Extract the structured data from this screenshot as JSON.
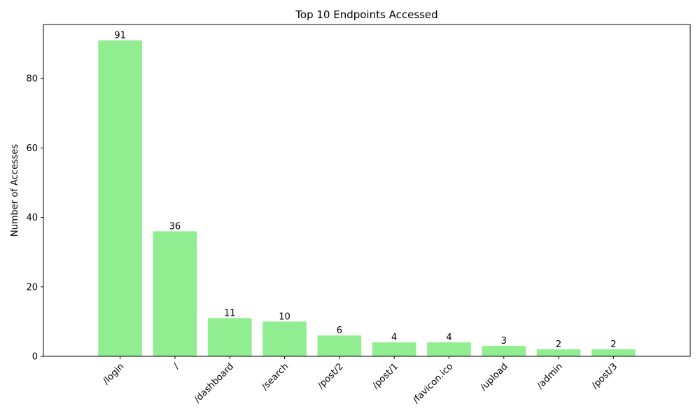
{
  "chart_data": {
    "type": "bar",
    "title": "Top 10 Endpoints Accessed",
    "xlabel": "",
    "ylabel": "Number of Accesses",
    "categories": [
      "/login",
      "/",
      "/dashboard",
      "/search",
      "/post/2",
      "/post/1",
      "/favicon.ico",
      "/upload",
      "/admin",
      "/post/3"
    ],
    "values": [
      91,
      36,
      11,
      10,
      6,
      4,
      4,
      3,
      2,
      2
    ],
    "ylim": [
      0,
      95.55
    ],
    "yticks": [
      0,
      20,
      40,
      60,
      80
    ],
    "grid": false,
    "bar_color": "#90ee90",
    "data_labels": true
  }
}
